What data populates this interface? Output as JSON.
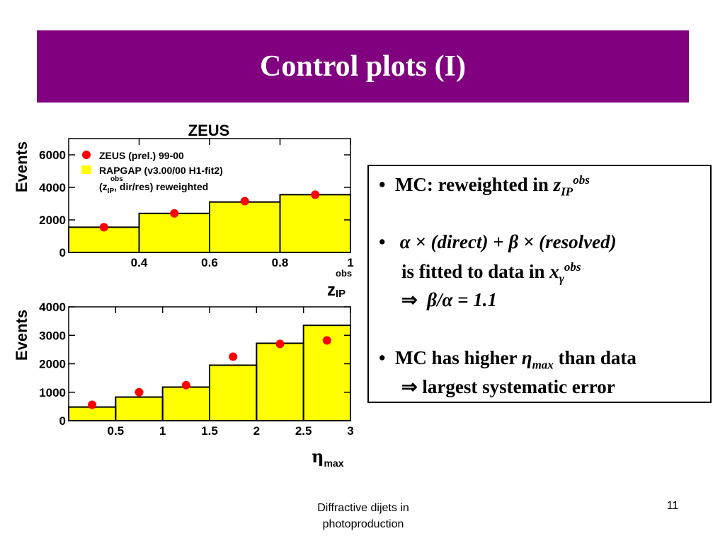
{
  "slide": {
    "title": "Control plots (I)",
    "footer": "Diffractive dijets in photoproduction",
    "page_number": "11"
  },
  "figure": {
    "experiment_label": "ZEUS",
    "legend": {
      "data": "ZEUS (prel.) 99-00",
      "mc": "RAPGAP (v3.00/00 H1-fit2)",
      "note_prefix": "(z",
      "note_sub": "IP",
      "note_sup": "obs",
      "note_suffix": ", dir/res) reweighted"
    }
  },
  "colors": {
    "title_bg": "#800080",
    "mc_fill": "#ffff00",
    "data_marker": "#ff0000"
  },
  "bullets": {
    "b1": {
      "bullet": "•",
      "text": "MC:  reweighted in ",
      "var": "z",
      "sub": "IP",
      "sup": "obs"
    },
    "b2": {
      "bullet": "•",
      "alpha": "α",
      "times1": " × ",
      "direct": "(direct) + ",
      "beta": "β",
      "times2": " × ",
      "resolved": "(resolved)",
      "line2": "is fitted to data in ",
      "var": "x",
      "sub": "γ",
      "sup": "obs",
      "implies": "⇒",
      "ratio_beta": "β",
      "slash": "/",
      "ratio_alpha": "α",
      "ratio_value": " = 1.1"
    },
    "b3": {
      "bullet": "•",
      "text": "MC has higher ",
      "eta": "η",
      "sub": "max",
      "text2": " than data",
      "implies": "⇒",
      "line2": " largest systematic error"
    }
  },
  "chart_data": [
    {
      "type": "bar",
      "ylabel": "Events",
      "xlabel": "z",
      "xlabel_sub": "IP",
      "xlabel_sup": "obs",
      "xlim": [
        0.2,
        1.0
      ],
      "ylim": [
        0,
        7000
      ],
      "xticks": [
        0.4,
        0.6,
        0.8,
        1.0
      ],
      "xtick_labels": [
        "0.4",
        "0.6",
        "0.8",
        "1"
      ],
      "yticks": [
        0,
        2000,
        4000,
        6000
      ],
      "ytick_labels": [
        "0",
        "2000",
        "4000",
        "6000"
      ],
      "bin_edges": [
        0.2,
        0.4,
        0.6,
        0.8,
        1.0
      ],
      "series": [
        {
          "name": "RAPGAP (v3.00/00 H1-fit2)",
          "kind": "histogram",
          "values": [
            1550,
            2400,
            3100,
            3550
          ]
        },
        {
          "name": "ZEUS (prel.) 99-00",
          "kind": "points",
          "x": [
            0.3,
            0.5,
            0.7,
            0.9
          ],
          "values": [
            1550,
            2400,
            3150,
            3550
          ]
        }
      ]
    },
    {
      "type": "bar",
      "ylabel": "Events",
      "xlabel": "η",
      "xlabel_sub": "max",
      "xlim": [
        0.0,
        3.0
      ],
      "ylim": [
        0,
        4000
      ],
      "xticks": [
        0.5,
        1.0,
        1.5,
        2.0,
        2.5,
        3.0
      ],
      "xtick_labels": [
        "0.5",
        "1",
        "1.5",
        "2",
        "2.5",
        "3"
      ],
      "yticks": [
        0,
        1000,
        2000,
        3000,
        4000
      ],
      "ytick_labels": [
        "0",
        "1000",
        "2000",
        "3000",
        "4000"
      ],
      "bin_edges": [
        0.0,
        0.5,
        1.0,
        1.5,
        2.0,
        2.5,
        3.0
      ],
      "series": [
        {
          "name": "RAPGAP (v3.00/00 H1-fit2)",
          "kind": "histogram",
          "values": [
            480,
            830,
            1180,
            1950,
            2720,
            3350
          ]
        },
        {
          "name": "ZEUS (prel.) 99-00",
          "kind": "points",
          "x": [
            0.25,
            0.75,
            1.25,
            1.75,
            2.25,
            2.75
          ],
          "values": [
            560,
            1000,
            1250,
            2250,
            2700,
            2820
          ]
        }
      ]
    }
  ]
}
